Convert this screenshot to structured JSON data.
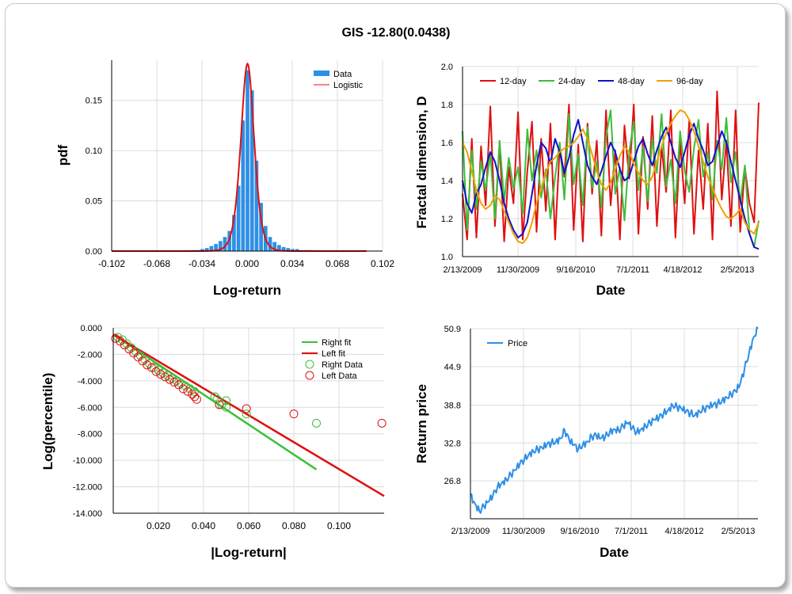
{
  "page": {
    "title": "GIS -12.80(0.0438)"
  },
  "chart_data": [
    {
      "type": "bar",
      "id": "histogram",
      "xlabel": "Log-return",
      "ylabel": "pdf",
      "xticks": [
        "-0.102",
        "-0.068",
        "-0.034",
        "0.000",
        "0.034",
        "0.068",
        "0.102"
      ],
      "xtick_values": [
        -0.102,
        -0.068,
        -0.034,
        0.0,
        0.034,
        0.068,
        0.102
      ],
      "yticks": [
        "0.00",
        "0.05",
        "0.10",
        "0.15"
      ],
      "ytick_values": [
        0.0,
        0.05,
        0.1,
        0.15
      ],
      "xlim": [
        -0.102,
        0.102
      ],
      "ylim": [
        0.0,
        0.19
      ],
      "legend": {
        "position": "top-right",
        "entries": [
          "Data",
          "Logistic"
        ]
      },
      "bar_width": 0.0034,
      "bars": [
        {
          "x": -0.0405,
          "y": 0.001
        },
        {
          "x": -0.0371,
          "y": 0.001
        },
        {
          "x": -0.0337,
          "y": 0.002
        },
        {
          "x": -0.0303,
          "y": 0.003
        },
        {
          "x": -0.0269,
          "y": 0.005
        },
        {
          "x": -0.0235,
          "y": 0.007
        },
        {
          "x": -0.0201,
          "y": 0.01
        },
        {
          "x": -0.0167,
          "y": 0.014
        },
        {
          "x": -0.0133,
          "y": 0.02
        },
        {
          "x": -0.0099,
          "y": 0.036
        },
        {
          "x": -0.0065,
          "y": 0.065
        },
        {
          "x": -0.0031,
          "y": 0.13
        },
        {
          "x": 0.0003,
          "y": 0.18
        },
        {
          "x": 0.0037,
          "y": 0.16
        },
        {
          "x": 0.0071,
          "y": 0.09
        },
        {
          "x": 0.0105,
          "y": 0.048
        },
        {
          "x": 0.0139,
          "y": 0.025
        },
        {
          "x": 0.0173,
          "y": 0.014
        },
        {
          "x": 0.0207,
          "y": 0.009
        },
        {
          "x": 0.0241,
          "y": 0.006
        },
        {
          "x": 0.0275,
          "y": 0.004
        },
        {
          "x": 0.0309,
          "y": 0.003
        },
        {
          "x": 0.0343,
          "y": 0.002
        },
        {
          "x": 0.0377,
          "y": 0.002
        },
        {
          "x": 0.0411,
          "y": 0.001
        },
        {
          "x": 0.0445,
          "y": 0.001
        },
        {
          "x": 0.0479,
          "y": 0.001
        }
      ],
      "logistic": {
        "mu": 0.0003,
        "s": 0.00335,
        "x_range": [
          -0.102,
          0.09
        ]
      },
      "colors": {
        "bars": "#2e8fe6",
        "fit": "#e01010"
      }
    },
    {
      "type": "line",
      "id": "fractal-dimension",
      "xlabel": "Date",
      "ylabel": "Fractal dimension, D",
      "xticks": [
        "2/13/2009",
        "11/30/2009",
        "9/16/2010",
        "7/1/2011",
        "4/18/2012",
        "2/5/2013"
      ],
      "yticks": [
        "1.0",
        "1.2",
        "1.4",
        "1.6",
        "1.8",
        "2.0"
      ],
      "ytick_values": [
        1.0,
        1.2,
        1.4,
        1.6,
        1.8,
        2.0
      ],
      "ylim": [
        1.0,
        2.0
      ],
      "legend": {
        "position": "top",
        "entries": [
          "12-day",
          "24-day",
          "48-day",
          "96-day"
        ]
      },
      "series": [
        {
          "name": "12-day",
          "color": "#e01010",
          "values": [
            1.33,
            1.09,
            1.62,
            1.1,
            1.58,
            1.27,
            1.79,
            1.16,
            1.6,
            1.08,
            1.47,
            1.28,
            1.76,
            1.09,
            1.45,
            1.71,
            1.13,
            1.62,
            1.24,
            1.7,
            1.09,
            1.58,
            1.42,
            1.8,
            1.14,
            1.59,
            1.08,
            1.7,
            1.33,
            1.61,
            1.11,
            1.77,
            1.27,
            1.56,
            1.09,
            1.69,
            1.41,
            1.8,
            1.12,
            1.63,
            1.25,
            1.74,
            1.16,
            1.58,
            1.34,
            1.77,
            1.1,
            1.61,
            1.28,
            1.72,
            1.12,
            1.56,
            1.25,
            1.7,
            1.09,
            1.87,
            1.3,
            1.61,
            1.16,
            1.77,
            1.13,
            1.47,
            1.28,
            1.18,
            1.81
          ]
        },
        {
          "name": "24-day",
          "color": "#3bbf3b",
          "values": [
            1.66,
            1.14,
            1.56,
            1.25,
            1.5,
            1.35,
            1.54,
            1.2,
            1.61,
            1.29,
            1.52,
            1.36,
            1.47,
            1.23,
            1.67,
            1.4,
            1.56,
            1.31,
            1.46,
            1.2,
            1.42,
            1.6,
            1.3,
            1.75,
            1.38,
            1.54,
            1.27,
            1.68,
            1.36,
            1.5,
            1.26,
            1.63,
            1.77,
            1.33,
            1.47,
            1.19,
            1.55,
            1.71,
            1.35,
            1.58,
            1.29,
            1.62,
            1.44,
            1.75,
            1.37,
            1.51,
            1.28,
            1.66,
            1.45,
            1.34,
            1.57,
            1.72,
            1.42,
            1.55,
            1.3,
            1.61,
            1.46,
            1.73,
            1.39,
            1.55,
            1.28,
            1.48,
            1.12,
            1.05,
            1.19
          ]
        },
        {
          "name": "48-day",
          "color": "#1010cc",
          "values": [
            1.4,
            1.28,
            1.23,
            1.33,
            1.38,
            1.47,
            1.55,
            1.5,
            1.4,
            1.28,
            1.2,
            1.14,
            1.1,
            1.12,
            1.18,
            1.33,
            1.48,
            1.6,
            1.57,
            1.49,
            1.62,
            1.55,
            1.44,
            1.52,
            1.64,
            1.72,
            1.6,
            1.48,
            1.42,
            1.38,
            1.45,
            1.53,
            1.6,
            1.55,
            1.46,
            1.4,
            1.42,
            1.5,
            1.58,
            1.62,
            1.54,
            1.48,
            1.56,
            1.63,
            1.68,
            1.6,
            1.52,
            1.47,
            1.55,
            1.64,
            1.7,
            1.62,
            1.56,
            1.48,
            1.5,
            1.58,
            1.66,
            1.6,
            1.5,
            1.4,
            1.3,
            1.2,
            1.12,
            1.05,
            1.04
          ]
        },
        {
          "name": "96-day",
          "color": "#f0a000",
          "values": [
            1.6,
            1.55,
            1.45,
            1.35,
            1.28,
            1.25,
            1.27,
            1.32,
            1.3,
            1.24,
            1.18,
            1.12,
            1.08,
            1.07,
            1.1,
            1.18,
            1.28,
            1.36,
            1.44,
            1.5,
            1.52,
            1.55,
            1.57,
            1.58,
            1.6,
            1.63,
            1.67,
            1.62,
            1.54,
            1.45,
            1.38,
            1.35,
            1.39,
            1.46,
            1.53,
            1.58,
            1.55,
            1.49,
            1.44,
            1.4,
            1.38,
            1.42,
            1.5,
            1.58,
            1.65,
            1.7,
            1.74,
            1.77,
            1.76,
            1.72,
            1.66,
            1.58,
            1.5,
            1.42,
            1.36,
            1.3,
            1.25,
            1.21,
            1.2,
            1.22,
            1.25,
            1.18,
            1.14,
            1.12,
            1.18
          ]
        }
      ]
    },
    {
      "type": "scatter",
      "id": "tail-fit",
      "xlabel": "|Log-return|",
      "ylabel": "Log(percentile)",
      "xticks": [
        "0.020",
        "0.040",
        "0.060",
        "0.080",
        "0.100"
      ],
      "xtick_values": [
        0.02,
        0.04,
        0.06,
        0.08,
        0.1
      ],
      "yticks": [
        "0.000",
        "-2.000",
        "-4.000",
        "-6.000",
        "-8.000",
        "-10.000",
        "-12.000",
        "-14.000"
      ],
      "ytick_values": [
        0,
        -2,
        -4,
        -6,
        -8,
        -10,
        -12,
        -14
      ],
      "xlim": [
        0.0,
        0.12
      ],
      "ylim": [
        -14.0,
        0.0
      ],
      "legend": {
        "position": "top-right",
        "entries": [
          "Right fit",
          "Left fit",
          "Right Data",
          "Left Data"
        ]
      },
      "right_fit": {
        "color": "#3bbf3b",
        "x": [
          0.0,
          0.09
        ],
        "y": [
          -0.5,
          -10.7
        ]
      },
      "left_fit": {
        "color": "#e01010",
        "x": [
          0.0,
          0.12
        ],
        "y": [
          -0.5,
          -12.7
        ]
      },
      "right_data": {
        "color": "#3bbf3b",
        "points": [
          [
            0.002,
            -0.7
          ],
          [
            0.004,
            -0.9
          ],
          [
            0.006,
            -1.2
          ],
          [
            0.008,
            -1.5
          ],
          [
            0.01,
            -1.8
          ],
          [
            0.012,
            -2.1
          ],
          [
            0.014,
            -2.4
          ],
          [
            0.016,
            -2.7
          ],
          [
            0.018,
            -3.0
          ],
          [
            0.02,
            -3.2
          ],
          [
            0.022,
            -3.4
          ],
          [
            0.024,
            -3.6
          ],
          [
            0.026,
            -3.8
          ],
          [
            0.028,
            -4.0
          ],
          [
            0.03,
            -4.2
          ],
          [
            0.032,
            -4.4
          ],
          [
            0.034,
            -4.6
          ],
          [
            0.036,
            -4.8
          ],
          [
            0.045,
            -5.2
          ],
          [
            0.046,
            -5.4
          ],
          [
            0.048,
            -5.8
          ],
          [
            0.05,
            -5.5
          ],
          [
            0.05,
            -6.0
          ],
          [
            0.059,
            -6.5
          ],
          [
            0.09,
            -7.2
          ]
        ]
      },
      "left_data": {
        "color": "#e01010",
        "points": [
          [
            0.001,
            -0.8
          ],
          [
            0.003,
            -1.0
          ],
          [
            0.005,
            -1.3
          ],
          [
            0.007,
            -1.6
          ],
          [
            0.009,
            -1.9
          ],
          [
            0.011,
            -2.2
          ],
          [
            0.013,
            -2.5
          ],
          [
            0.015,
            -2.8
          ],
          [
            0.017,
            -3.0
          ],
          [
            0.019,
            -3.3
          ],
          [
            0.021,
            -3.5
          ],
          [
            0.023,
            -3.7
          ],
          [
            0.025,
            -3.9
          ],
          [
            0.027,
            -4.1
          ],
          [
            0.029,
            -4.3
          ],
          [
            0.031,
            -4.6
          ],
          [
            0.033,
            -4.8
          ],
          [
            0.035,
            -5.0
          ],
          [
            0.036,
            -5.2
          ],
          [
            0.037,
            -5.4
          ],
          [
            0.047,
            -5.8
          ],
          [
            0.059,
            -6.1
          ],
          [
            0.08,
            -6.5
          ],
          [
            0.119,
            -7.2
          ]
        ]
      }
    },
    {
      "type": "line",
      "id": "price",
      "xlabel": "Date",
      "ylabel": "Return price",
      "xticks": [
        "2/13/2009",
        "11/30/2009",
        "9/16/2010",
        "7/1/2011",
        "4/18/2012",
        "2/5/2013"
      ],
      "yticks": [
        "26.8",
        "32.8",
        "38.8",
        "44.9",
        "50.9"
      ],
      "ytick_values": [
        26.8,
        32.8,
        38.8,
        44.9,
        50.9
      ],
      "ylim": [
        20.8,
        50.9
      ],
      "legend": {
        "position": "top-left",
        "entries": [
          "Price"
        ]
      },
      "series": [
        {
          "name": "Price",
          "color": "#2e8fe6",
          "values": [
            24.5,
            23.2,
            22.0,
            22.8,
            23.5,
            24.5,
            25.8,
            26.5,
            27.0,
            27.8,
            28.5,
            29.5,
            30.2,
            31.0,
            31.5,
            31.8,
            32.0,
            32.5,
            32.8,
            33.0,
            33.5,
            34.8,
            33.2,
            32.5,
            31.8,
            32.5,
            33.0,
            33.8,
            34.0,
            33.5,
            33.8,
            34.5,
            35.0,
            34.8,
            35.5,
            36.0,
            35.2,
            34.5,
            35.0,
            35.5,
            36.0,
            36.5,
            36.8,
            37.5,
            38.0,
            38.8,
            38.5,
            38.2,
            37.8,
            37.5,
            37.2,
            37.8,
            38.2,
            38.5,
            38.8,
            39.0,
            39.5,
            40.0,
            40.5,
            41.0,
            42.0,
            44.5,
            47.0,
            49.5,
            50.9
          ]
        }
      ]
    }
  ]
}
